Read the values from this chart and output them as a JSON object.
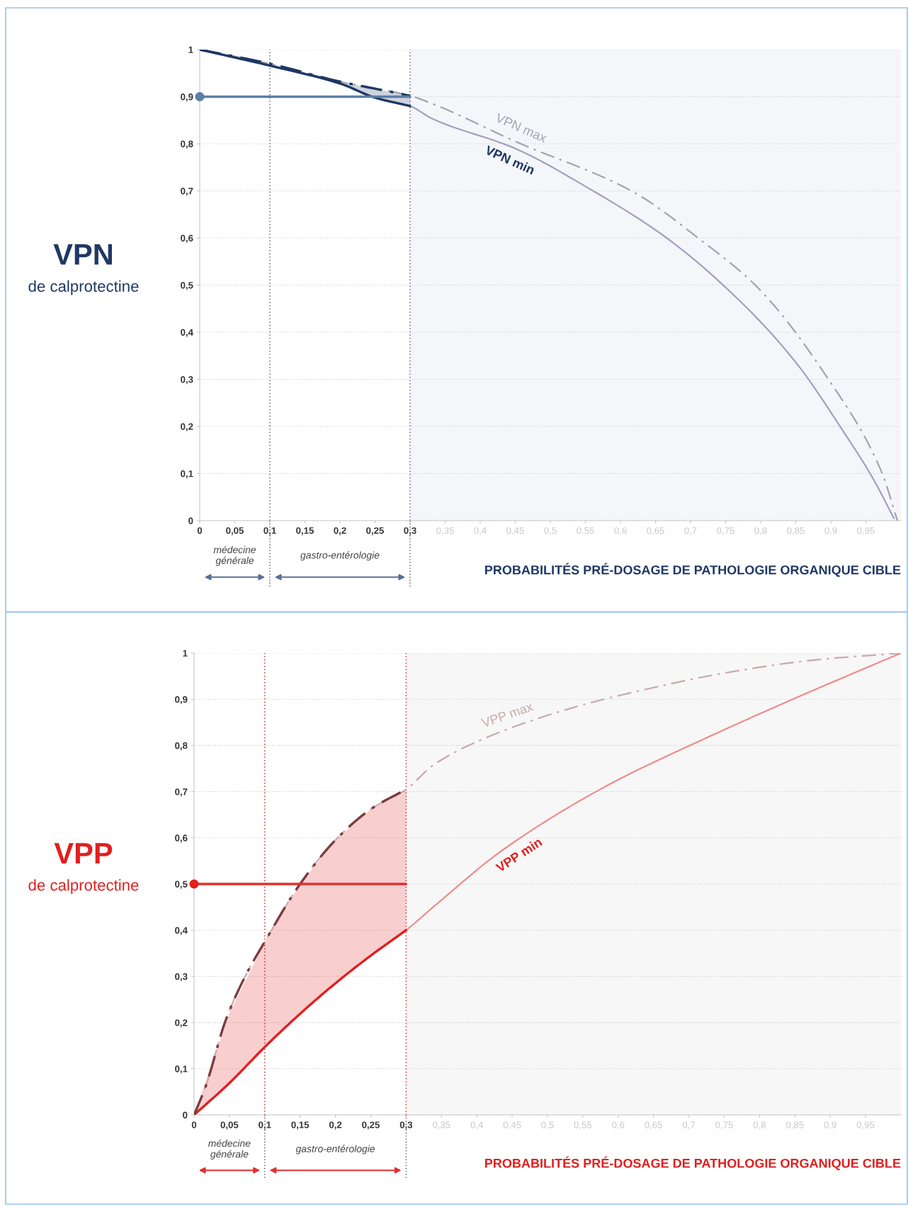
{
  "chart_data": [
    {
      "type": "line",
      "ylabel": "VPN",
      "annotations": [
        "de calprotectine",
        "médecine générale",
        "gastro-entérologie"
      ],
      "xlabel": "PROBABILITÉS PRÉ-DOSAGE DE PATHOLOGIE ORGANIQUE CIBLE",
      "xlim": [
        0,
        1
      ],
      "ylim": [
        0,
        1
      ],
      "xticks": [
        0,
        {
          "value": 0.05,
          "label": "0,05"
        },
        {
          "value": 0.1,
          "label": "0,1"
        },
        {
          "value": 0.15,
          "label": "0,15"
        },
        {
          "value": 0.2,
          "label": "0,2"
        },
        {
          "value": 0.25,
          "label": "0,25"
        },
        {
          "value": 0.3,
          "label": "0,3"
        },
        {
          "value": 0.35,
          "label": "0,35"
        },
        {
          "value": 0.4,
          "label": "0,4"
        },
        {
          "value": 0.45,
          "label": "0,45"
        },
        {
          "value": 0.5,
          "label": "0,5"
        },
        {
          "value": 0.55,
          "label": "0,55"
        },
        {
          "value": 0.6,
          "label": "0,6"
        },
        {
          "value": 0.65,
          "label": "0,65"
        },
        {
          "value": 0.7,
          "label": "0,7"
        },
        {
          "value": 0.75,
          "label": "0,75"
        },
        {
          "value": 0.8,
          "label": "0,8"
        },
        {
          "value": 0.85,
          "label": "0,85"
        },
        {
          "value": 0.9,
          "label": "0,9"
        },
        {
          "value": 0.95,
          "label": "0,95"
        }
      ],
      "yticks": [
        0,
        {
          "value": 0.1,
          "label": "0,1"
        },
        {
          "value": 0.2,
          "label": "0,2"
        },
        {
          "value": 0.3,
          "label": "0,3"
        },
        {
          "value": 0.4,
          "label": "0,4"
        },
        {
          "value": 0.5,
          "label": "0,5"
        },
        {
          "value": 0.6,
          "label": "0,6"
        },
        {
          "value": 0.7,
          "label": "0,7"
        },
        {
          "value": 0.8,
          "label": "0,8"
        },
        {
          "value": 0.9,
          "label": "0,9"
        },
        1
      ],
      "grid": "y",
      "legend": false,
      "series": [
        {
          "name": "VPN max",
          "color": "#a3a4ad",
          "line_style": "dashed",
          "x": [
            0,
            0.1,
            0.2,
            0.3,
            0.332,
            0.45,
            0.617,
            0.716,
            0.795,
            0.898,
            0.972,
            0.995
          ],
          "values": [
            1,
            0.97,
            0.932,
            0.902,
            0.885,
            0.805,
            0.699,
            0.594,
            0.496,
            0.297,
            0.105,
            0
          ]
        },
        {
          "name": "VPN min",
          "color": "#9ea3bf",
          "line_style": "solid",
          "x": [
            0,
            0.1,
            0.2,
            0.25,
            0.3,
            0.332,
            0.45,
            0.553,
            0.666,
            0.765,
            0.849,
            0.922,
            0.96,
            0.99
          ],
          "values": [
            1,
            0.966,
            0.928,
            0.898,
            0.88,
            0.853,
            0.79,
            0.707,
            0.6,
            0.474,
            0.338,
            0.18,
            0.09,
            0.005
          ]
        },
        {
          "color": "#1f3864",
          "line_style": "solid",
          "x": [
            0,
            0.1,
            0.2,
            0.25,
            0.3
          ],
          "values": [
            1,
            0.966,
            0.928,
            0.898,
            0.88
          ],
          "lower": [
            1,
            0.966,
            0.928,
            0.898,
            0.88
          ],
          "upper": [
            1,
            0.97,
            0.932,
            0.917,
            0.902
          ]
        },
        {
          "color": "#1f3864",
          "line_style": "dashed",
          "x": [
            0,
            0.1,
            0.2,
            0.25,
            0.3
          ],
          "values": [
            1,
            0.97,
            0.932,
            0.917,
            0.902
          ]
        },
        {
          "color": "#5b7fa6",
          "line_style": "solid",
          "x": [
            0,
            0.3
          ],
          "values": [
            0.9,
            0.9
          ]
        },
        {
          "type": "scatter",
          "color": "#5b7fa6",
          "marker": "circle",
          "x": [
            0
          ],
          "values": [
            0.9
          ]
        }
      ],
      "ref_lines": [
        {
          "axis": "x",
          "value": 0.1,
          "color": "#5b6f96",
          "line_style": "dotted"
        },
        {
          "axis": "x",
          "value": 0.3,
          "color": "#5b6f96",
          "line_style": "dotted"
        }
      ],
      "bands": [
        {
          "axis": "x",
          "from": 0.3,
          "to": 1,
          "color": "#f5f6f9"
        }
      ]
    },
    {
      "type": "line",
      "ylabel": "VPP",
      "annotations": [
        "de calprotectine",
        "médecine générale",
        "gastro-entérologie"
      ],
      "xlabel": "PROBABILITÉS PRÉ-DOSAGE DE PATHOLOGIE ORGANIQUE CIBLE",
      "xlim": [
        0,
        1
      ],
      "ylim": [
        0,
        1
      ],
      "xticks": [
        0,
        {
          "value": 0.05,
          "label": "0,05"
        },
        {
          "value": 0.1,
          "label": "0,1"
        },
        {
          "value": 0.15,
          "label": "0,15"
        },
        {
          "value": 0.2,
          "label": "0,2"
        },
        {
          "value": 0.25,
          "label": "0,25"
        },
        {
          "value": 0.3,
          "label": "0,3"
        },
        {
          "value": 0.35,
          "label": "0,35"
        },
        {
          "value": 0.4,
          "label": "0,4"
        },
        {
          "value": 0.45,
          "label": "0,45"
        },
        {
          "value": 0.5,
          "label": "0,5"
        },
        {
          "value": 0.55,
          "label": "0,55"
        },
        {
          "value": 0.6,
          "label": "0,6"
        },
        {
          "value": 0.65,
          "label": "0,65"
        },
        {
          "value": 0.7,
          "label": "0,7"
        },
        {
          "value": 0.75,
          "label": "0,75"
        },
        {
          "value": 0.8,
          "label": "0,8"
        },
        {
          "value": 0.85,
          "label": "0,85"
        },
        {
          "value": 0.9,
          "label": "0,9"
        },
        {
          "value": 0.95,
          "label": "0,95"
        }
      ],
      "yticks": [
        0,
        {
          "value": 0.1,
          "label": "0,1"
        },
        {
          "value": 0.2,
          "label": "0,2"
        },
        {
          "value": 0.3,
          "label": "0,3"
        },
        {
          "value": 0.4,
          "label": "0,4"
        },
        {
          "value": 0.5,
          "label": "0,5"
        },
        {
          "value": 0.6,
          "label": "0,6"
        },
        {
          "value": 0.7,
          "label": "0,7"
        },
        {
          "value": 0.8,
          "label": "0,8"
        },
        {
          "value": 0.9,
          "label": "0,9"
        },
        1
      ],
      "grid": "y",
      "legend": false,
      "series": [
        {
          "name": "VPP max",
          "color": "#c9a9ad",
          "line_style": "dashed",
          "x": [
            0,
            0.016,
            0.045,
            0.074,
            0.1,
            0.15,
            0.2,
            0.25,
            0.3,
            0.339,
            0.412,
            0.534,
            0.632,
            0.755,
            0.877,
            1
          ],
          "values": [
            0,
            0.06,
            0.206,
            0.305,
            0.375,
            0.5,
            0.595,
            0.662,
            0.705,
            0.758,
            0.816,
            0.881,
            0.919,
            0.958,
            0.985,
            1
          ]
        },
        {
          "name": "VPP min",
          "color": "#f08c8c",
          "line_style": "solid",
          "x": [
            0,
            0.05,
            0.1,
            0.15,
            0.2,
            0.25,
            0.3,
            0.339,
            0.437,
            0.583,
            0.73,
            0.853,
            1
          ],
          "values": [
            0,
            0.069,
            0.147,
            0.219,
            0.285,
            0.345,
            0.4,
            0.451,
            0.574,
            0.712,
            0.82,
            0.904,
            1
          ]
        },
        {
          "color": "#e0201f",
          "line_style": "solid",
          "x": [
            0,
            0.05,
            0.1,
            0.15,
            0.2,
            0.25,
            0.3
          ],
          "values": [
            0,
            0.069,
            0.147,
            0.219,
            0.285,
            0.345,
            0.4
          ],
          "lower": [
            0,
            0.069,
            0.147,
            0.219,
            0.285,
            0.345,
            0.4
          ],
          "upper": [
            0,
            0.22,
            0.375,
            0.5,
            0.595,
            0.662,
            0.705
          ]
        },
        {
          "color": "#7a3b3f",
          "line_style": "dashed",
          "x": [
            0,
            0.016,
            0.045,
            0.074,
            0.1,
            0.15,
            0.2,
            0.25,
            0.3
          ],
          "values": [
            0,
            0.06,
            0.206,
            0.305,
            0.375,
            0.5,
            0.595,
            0.662,
            0.705
          ]
        },
        {
          "color": "#e0302f",
          "line_style": "solid",
          "x": [
            0,
            0.3
          ],
          "values": [
            0.5,
            0.5
          ]
        },
        {
          "type": "scatter",
          "color": "#e0201f",
          "marker": "circle",
          "x": [
            0
          ],
          "values": [
            0.5
          ]
        }
      ],
      "ref_lines": [
        {
          "axis": "x",
          "value": 0.1,
          "color": "#e0302f",
          "line_style": "dotted"
        },
        {
          "axis": "x",
          "value": 0.3,
          "color": "#e0302f",
          "line_style": "dotted"
        }
      ],
      "bands": [
        {
          "axis": "x",
          "from": 0.3,
          "to": 1,
          "color": "#f7f7f7"
        }
      ]
    }
  ]
}
